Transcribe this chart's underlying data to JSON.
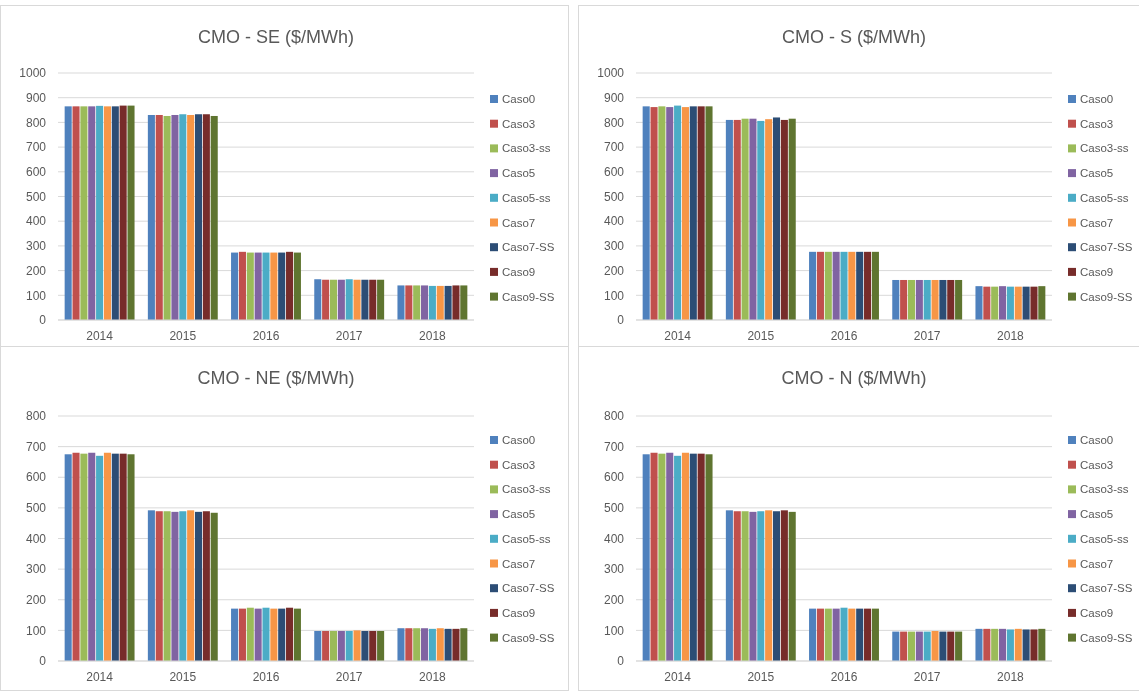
{
  "chart_data": [
    {
      "type": "bar",
      "title": "CMO - SE ($/MWh)",
      "categories": [
        "2014",
        "2015",
        "2016",
        "2017",
        "2018"
      ],
      "ylim": [
        0,
        1000
      ],
      "yticks": [
        0,
        100,
        200,
        300,
        400,
        500,
        600,
        700,
        800,
        900,
        1000
      ],
      "grid": "y",
      "legend": "right",
      "series": [
        {
          "name": "Caso0",
          "color": "#4f81bd",
          "values": [
            865,
            830,
            273,
            165,
            140
          ]
        },
        {
          "name": "Caso3",
          "color": "#c0504d",
          "values": [
            865,
            830,
            276,
            163,
            140
          ]
        },
        {
          "name": "Caso3-ss",
          "color": "#9bbb59",
          "values": [
            865,
            826,
            273,
            163,
            140
          ]
        },
        {
          "name": "Caso5",
          "color": "#8064a2",
          "values": [
            865,
            830,
            273,
            163,
            140
          ]
        },
        {
          "name": "Caso5-ss",
          "color": "#4bacc6",
          "values": [
            867,
            833,
            273,
            165,
            138
          ]
        },
        {
          "name": "Caso7",
          "color": "#f79646",
          "values": [
            865,
            830,
            273,
            163,
            138
          ]
        },
        {
          "name": "Caso7-SS",
          "color": "#2c4d75",
          "values": [
            865,
            833,
            273,
            163,
            138
          ]
        },
        {
          "name": "Caso9",
          "color": "#772c2a",
          "values": [
            868,
            833,
            276,
            163,
            140
          ]
        },
        {
          "name": "Caso9-SS",
          "color": "#5f7530",
          "values": [
            868,
            826,
            273,
            163,
            140
          ]
        }
      ]
    },
    {
      "type": "bar",
      "title": "CMO - S ($/MWh)",
      "categories": [
        "2014",
        "2015",
        "2016",
        "2017",
        "2018"
      ],
      "ylim": [
        0,
        1000
      ],
      "yticks": [
        0,
        100,
        200,
        300,
        400,
        500,
        600,
        700,
        800,
        900,
        1000
      ],
      "grid": "y",
      "legend": "right",
      "series": [
        {
          "name": "Caso0",
          "color": "#4f81bd",
          "values": [
            865,
            810,
            276,
            162,
            137
          ]
        },
        {
          "name": "Caso3",
          "color": "#c0504d",
          "values": [
            862,
            810,
            276,
            162,
            135
          ]
        },
        {
          "name": "Caso3-ss",
          "color": "#9bbb59",
          "values": [
            865,
            815,
            276,
            162,
            135
          ]
        },
        {
          "name": "Caso5",
          "color": "#8064a2",
          "values": [
            862,
            815,
            276,
            162,
            137
          ]
        },
        {
          "name": "Caso5-ss",
          "color": "#4bacc6",
          "values": [
            868,
            806,
            276,
            162,
            135
          ]
        },
        {
          "name": "Caso7",
          "color": "#f79646",
          "values": [
            862,
            813,
            276,
            162,
            135
          ]
        },
        {
          "name": "Caso7-SS",
          "color": "#2c4d75",
          "values": [
            865,
            820,
            276,
            162,
            135
          ]
        },
        {
          "name": "Caso9",
          "color": "#772c2a",
          "values": [
            865,
            810,
            276,
            162,
            135
          ]
        },
        {
          "name": "Caso9-SS",
          "color": "#5f7530",
          "values": [
            865,
            815,
            276,
            162,
            137
          ]
        }
      ]
    },
    {
      "type": "bar",
      "title": "CMO - NE ($/MWh)",
      "categories": [
        "2014",
        "2015",
        "2016",
        "2017",
        "2018"
      ],
      "ylim": [
        0,
        800
      ],
      "yticks": [
        0,
        100,
        200,
        300,
        400,
        500,
        600,
        700,
        800
      ],
      "grid": "y",
      "legend": "right",
      "series": [
        {
          "name": "Caso0",
          "color": "#4f81bd",
          "values": [
            675,
            492,
            171,
            98,
            107
          ]
        },
        {
          "name": "Caso3",
          "color": "#c0504d",
          "values": [
            680,
            489,
            171,
            98,
            107
          ]
        },
        {
          "name": "Caso3-ss",
          "color": "#9bbb59",
          "values": [
            677,
            489,
            174,
            98,
            107
          ]
        },
        {
          "name": "Caso5",
          "color": "#8064a2",
          "values": [
            680,
            487,
            171,
            98,
            107
          ]
        },
        {
          "name": "Caso5-ss",
          "color": "#4bacc6",
          "values": [
            670,
            489,
            174,
            98,
            105
          ]
        },
        {
          "name": "Caso7",
          "color": "#f79646",
          "values": [
            680,
            492,
            171,
            100,
            107
          ]
        },
        {
          "name": "Caso7-SS",
          "color": "#2c4d75",
          "values": [
            677,
            487,
            171,
            98,
            105
          ]
        },
        {
          "name": "Caso9",
          "color": "#772c2a",
          "values": [
            677,
            489,
            174,
            98,
            105
          ]
        },
        {
          "name": "Caso9-SS",
          "color": "#5f7530",
          "values": [
            675,
            484,
            171,
            98,
            107
          ]
        }
      ]
    },
    {
      "type": "bar",
      "title": "CMO - N ($/MWh)",
      "categories": [
        "2014",
        "2015",
        "2016",
        "2017",
        "2018"
      ],
      "ylim": [
        0,
        800
      ],
      "yticks": [
        0,
        100,
        200,
        300,
        400,
        500,
        600,
        700,
        800
      ],
      "grid": "y",
      "legend": "right",
      "series": [
        {
          "name": "Caso0",
          "color": "#4f81bd",
          "values": [
            675,
            492,
            171,
            96,
            105
          ]
        },
        {
          "name": "Caso3",
          "color": "#c0504d",
          "values": [
            680,
            489,
            171,
            96,
            105
          ]
        },
        {
          "name": "Caso3-ss",
          "color": "#9bbb59",
          "values": [
            677,
            489,
            171,
            96,
            105
          ]
        },
        {
          "name": "Caso5",
          "color": "#8064a2",
          "values": [
            680,
            487,
            171,
            96,
            105
          ]
        },
        {
          "name": "Caso5-ss",
          "color": "#4bacc6",
          "values": [
            670,
            489,
            174,
            96,
            103
          ]
        },
        {
          "name": "Caso7",
          "color": "#f79646",
          "values": [
            680,
            492,
            171,
            98,
            105
          ]
        },
        {
          "name": "Caso7-SS",
          "color": "#2c4d75",
          "values": [
            677,
            489,
            171,
            96,
            103
          ]
        },
        {
          "name": "Caso9",
          "color": "#772c2a",
          "values": [
            677,
            492,
            171,
            96,
            103
          ]
        },
        {
          "name": "Caso9-SS",
          "color": "#5f7530",
          "values": [
            675,
            487,
            171,
            96,
            105
          ]
        }
      ]
    }
  ]
}
